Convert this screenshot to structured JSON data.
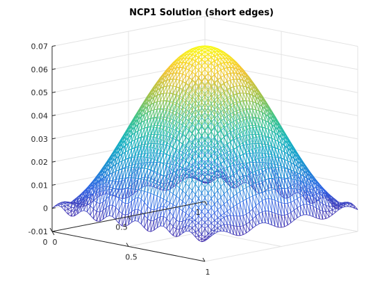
{
  "chart_data": {
    "type": "mesh",
    "title": "NCP1 Solution (short edges)",
    "xlabel": "",
    "ylabel": "",
    "zlabel": "",
    "x_range": [
      0,
      1
    ],
    "y_range": [
      0,
      1
    ],
    "zlim": [
      -0.01,
      0.07
    ],
    "z_ticks": [
      "-0.01",
      "0",
      "0.01",
      "0.02",
      "0.03",
      "0.04",
      "0.05",
      "0.06",
      "0.07"
    ],
    "x_ticks": [
      "0",
      "0.5",
      "1"
    ],
    "y_ticks": [
      "0",
      "0.5",
      "1"
    ],
    "grid": true,
    "colormap": "parula",
    "colormap_stops": [
      "#3e26a8",
      "#2f64e5",
      "#1a8fd2",
      "#13b1c2",
      "#3bc48a",
      "#a5c348",
      "#f5c331",
      "#f9fb15"
    ],
    "surface": "u(x,y) ≈ 0.07·sin(πx)·sin(πy)",
    "peak": {
      "x": 0.5,
      "y": 0.5,
      "z": 0.07
    },
    "boundary_value": 0
  }
}
